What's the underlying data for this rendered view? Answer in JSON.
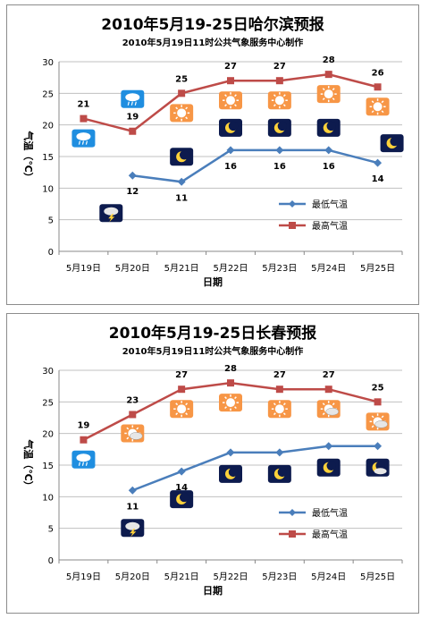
{
  "colors": {
    "low_series": "#4a7ebb",
    "high_series": "#be4b48",
    "sunny_tile_bg": "#f79646",
    "rain_tile_bg": "#1f8ee0",
    "night_tile_bg": "#0d1b4e",
    "gridline": "#c0c0c0"
  },
  "chart_data": [
    {
      "type": "line",
      "title": "2010年5月19-25日哈尔滨预报",
      "subtitle": "2010年5月19日11时公共气象服务中心制作",
      "xlabel": "日期",
      "ylabel": "气温（℃）",
      "ylim": [
        0,
        30
      ],
      "yticks": [
        "0",
        "5",
        "10",
        "15",
        "20",
        "25",
        "30"
      ],
      "categories": [
        "5月19日",
        "5月20日",
        "5月21日",
        "5月22日",
        "5月23日",
        "5月24日",
        "5月25日"
      ],
      "grid": true,
      "legend_position": "bottom-right",
      "series": [
        {
          "name": "最低气温",
          "values": [
            null,
            12,
            11,
            16,
            16,
            16,
            14
          ],
          "labels": [
            "",
            "12",
            "11",
            "16",
            "16",
            "16",
            "14"
          ]
        },
        {
          "name": "最高气温",
          "values": [
            21,
            19,
            25,
            27,
            27,
            28,
            26
          ],
          "labels": [
            "21",
            "19",
            "25",
            "27",
            "27",
            "28",
            "26"
          ]
        }
      ],
      "day_icons": [
        "rain-cloud-icon",
        "rain-cloud-icon",
        "sun-icon",
        "sun-icon",
        "sun-icon",
        "sun-icon",
        "sun-icon"
      ],
      "night_icons": [
        "",
        "night-thunderstorm-icon",
        "moon-icon",
        "moon-icon",
        "moon-icon",
        "moon-icon",
        "moon-icon"
      ]
    },
    {
      "type": "line",
      "title": "2010年5月19-25日长春预报",
      "subtitle": "2010年5月19日11时公共气象服务中心制作",
      "xlabel": "日期",
      "ylabel": "气温（℃）",
      "ylim": [
        0,
        30
      ],
      "yticks": [
        "0",
        "5",
        "10",
        "15",
        "20",
        "25",
        "30"
      ],
      "categories": [
        "5月19日",
        "5月20日",
        "5月21日",
        "5月22日",
        "5月23日",
        "5月24日",
        "5月25日"
      ],
      "grid": true,
      "legend_position": "bottom-right",
      "series": [
        {
          "name": "最低气温",
          "values": [
            null,
            11,
            14,
            17,
            17,
            18,
            18
          ],
          "labels": [
            "",
            "11",
            "14",
            "17",
            "17",
            "18",
            "18"
          ]
        },
        {
          "name": "最高气温",
          "values": [
            19,
            23,
            27,
            28,
            27,
            27,
            25
          ],
          "labels": [
            "19",
            "23",
            "27",
            "28",
            "27",
            "27",
            "25"
          ]
        }
      ],
      "day_icons": [
        "rain-cloud-icon",
        "partly-cloudy-icon",
        "sun-icon",
        "sun-icon",
        "sun-icon",
        "partly-cloudy-icon",
        "partly-cloudy-icon"
      ],
      "night_icons": [
        "",
        "night-thunderstorm-icon",
        "moon-icon",
        "moon-icon",
        "moon-icon",
        "moon-icon",
        "night-cloudy-icon"
      ]
    }
  ]
}
